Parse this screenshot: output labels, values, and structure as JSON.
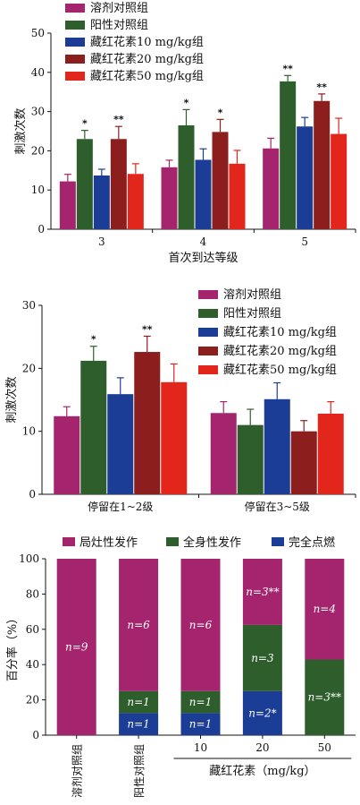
{
  "chart_data": [
    {
      "type": "bar",
      "ylabel": "刺激次数",
      "xlabel": "首次到达等级",
      "ylim": [
        0,
        50
      ],
      "yticks": [
        0,
        10,
        20,
        30,
        40,
        50
      ],
      "categories": [
        "3",
        "4",
        "5"
      ],
      "legend_position": "top-left",
      "series": [
        {
          "name": "溶剂对照组",
          "color": "#A4246E",
          "values": [
            12.2,
            15.8,
            20.6
          ],
          "errors": [
            1.8,
            1.8,
            2.6
          ],
          "stars": [
            "",
            "",
            ""
          ]
        },
        {
          "name": "阳性对照组",
          "color": "#2E5E2C",
          "values": [
            23.0,
            26.5,
            37.7
          ],
          "errors": [
            2.2,
            4.0,
            1.5
          ],
          "stars": [
            "*",
            "*",
            "**"
          ]
        },
        {
          "name": "藏红花素10 mg/kg组",
          "color": "#1B3D95",
          "values": [
            13.7,
            17.7,
            26.2
          ],
          "errors": [
            1.6,
            2.8,
            2.3
          ],
          "stars": [
            "",
            "",
            ""
          ]
        },
        {
          "name": "藏红花素20 mg/kg组",
          "color": "#8C1E1E",
          "values": [
            23.0,
            24.8,
            32.7
          ],
          "errors": [
            3.2,
            3.2,
            1.8
          ],
          "stars": [
            "**",
            "*",
            "**"
          ]
        },
        {
          "name": "藏红花素50 mg/kg组",
          "color": "#E3261C",
          "values": [
            14.1,
            16.7,
            24.3
          ],
          "errors": [
            2.6,
            3.4,
            4.0
          ],
          "stars": [
            "",
            "",
            ""
          ]
        }
      ]
    },
    {
      "type": "bar",
      "ylabel": "刺激次数",
      "xlabel": "",
      "ylim": [
        0,
        30
      ],
      "yticks": [
        0,
        10,
        20,
        30
      ],
      "categories": [
        "停留在1~2级",
        "停留在3~5级"
      ],
      "legend_position": "top-right",
      "series": [
        {
          "name": "溶剂对照组",
          "color": "#A4246E",
          "values": [
            12.4,
            12.9
          ],
          "errors": [
            1.5,
            1.8
          ],
          "stars": [
            "",
            ""
          ]
        },
        {
          "name": "阳性对照组",
          "color": "#2E5E2C",
          "values": [
            21.2,
            11.0
          ],
          "errors": [
            2.3,
            2.5
          ],
          "stars": [
            "*",
            ""
          ]
        },
        {
          "name": "藏红花素10 mg/kg组",
          "color": "#1B3D95",
          "values": [
            15.9,
            15.1
          ],
          "errors": [
            2.6,
            2.6
          ],
          "stars": [
            "",
            ""
          ]
        },
        {
          "name": "藏红花素20 mg/kg组",
          "color": "#8C1E1E",
          "values": [
            22.6,
            10.0
          ],
          "errors": [
            2.5,
            1.7
          ],
          "stars": [
            "**",
            ""
          ]
        },
        {
          "name": "藏红花素50 mg/kg组",
          "color": "#E3261C",
          "values": [
            17.8,
            12.8
          ],
          "errors": [
            2.9,
            1.9
          ],
          "stars": [
            "",
            ""
          ]
        }
      ]
    },
    {
      "type": "bar",
      "stacked": true,
      "ylabel": "百分率（%）",
      "ylim": [
        0,
        100
      ],
      "yticks": [
        0,
        20,
        40,
        60,
        80,
        100
      ],
      "categories": [
        "溶剂对照组",
        "阳性对照组",
        "10",
        "20",
        "50"
      ],
      "group_label": "藏红花素（mg/kg）",
      "legend_position": "top",
      "series": [
        {
          "name": "完全点燃",
          "color": "#1B3D95",
          "values": [
            0,
            12.5,
            12.5,
            25.0,
            0
          ],
          "labels": [
            "",
            "n=1",
            "n=1",
            "n=2*",
            ""
          ]
        },
        {
          "name": "全身性发作",
          "color": "#2E5E2C",
          "values": [
            0,
            12.5,
            12.5,
            37.5,
            42.9
          ],
          "labels": [
            "",
            "n=1",
            "n=1",
            "n=3",
            "n=3**"
          ]
        },
        {
          "name": "局灶性发作",
          "color": "#A4246E",
          "values": [
            100,
            75.0,
            75.0,
            37.5,
            57.1
          ],
          "labels": [
            "n=9",
            "n=6",
            "n=6",
            "n=3**",
            "n=4"
          ]
        }
      ],
      "legend_order": [
        "局灶性发作",
        "全身性发作",
        "完全点燃"
      ]
    }
  ]
}
